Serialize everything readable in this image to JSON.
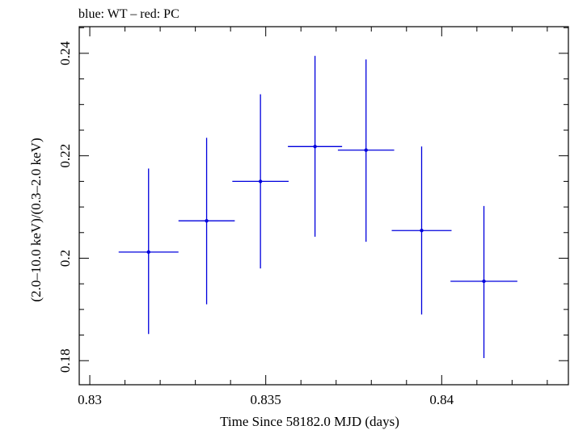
{
  "chart_data": {
    "type": "scatter",
    "title": "blue: WT – red: PC",
    "xlabel": "Time Since 58182.0 MJD (days)",
    "ylabel": "(2.0–10.0 keV)/(0.3–2.0 keV)",
    "xlim": [
      0.8297,
      0.8436
    ],
    "ylim": [
      0.1753,
      0.2452
    ],
    "x_ticks": [
      0.83,
      0.835,
      0.84
    ],
    "x_tick_labels": [
      "0.83",
      "0.835",
      "0.84"
    ],
    "y_ticks": [
      0.18,
      0.2,
      0.22,
      0.24
    ],
    "y_tick_labels": [
      "0.18",
      "0.2",
      "0.22",
      "0.24"
    ],
    "grid": false,
    "series": [
      {
        "color": "#0000dd",
        "points": [
          {
            "x": 0.83167,
            "y": 0.2012,
            "xerr": 0.00085,
            "ylo": 0.1852,
            "yhi": 0.2175
          },
          {
            "x": 0.83332,
            "y": 0.2073,
            "xerr": 0.0008,
            "ylo": 0.191,
            "yhi": 0.2235
          },
          {
            "x": 0.83485,
            "y": 0.215,
            "xerr": 0.0008,
            "ylo": 0.198,
            "yhi": 0.232
          },
          {
            "x": 0.8364,
            "y": 0.2218,
            "xerr": 0.00077,
            "ylo": 0.2042,
            "yhi": 0.2395
          },
          {
            "x": 0.83785,
            "y": 0.2211,
            "xerr": 0.0008,
            "ylo": 0.2032,
            "yhi": 0.2388
          },
          {
            "x": 0.83943,
            "y": 0.2054,
            "xerr": 0.00085,
            "ylo": 0.189,
            "yhi": 0.2218
          },
          {
            "x": 0.8412,
            "y": 0.1955,
            "xerr": 0.00095,
            "ylo": 0.1805,
            "yhi": 0.2102
          }
        ]
      }
    ]
  }
}
